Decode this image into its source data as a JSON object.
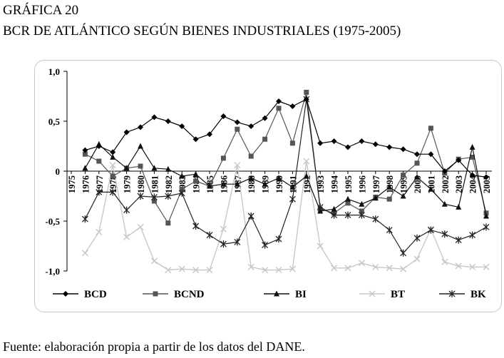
{
  "header": {
    "line1": "GRÁFICA 20",
    "line2": "BCR DE ATLÁNTICO SEGÚN BIENES INDUSTRIALES (1975-2005)"
  },
  "footer": {
    "source": "Fuente: elaboración propia a partir de los datos del DANE."
  },
  "colors": {
    "BCD": "#000000",
    "BCND": "#555555",
    "BI": "#111111",
    "BT": "#c8c8c8",
    "BK": "#222222"
  },
  "chart_data": {
    "type": "line",
    "title": "BCR DE ATLÁNTICO SEGÚN BIENES INDUSTRIALES (1975-2005)",
    "xlabel": "",
    "ylabel": "",
    "ylim": [
      -1.0,
      1.0
    ],
    "yticks": [
      1.0,
      0.5,
      0,
      -0.5,
      -1.0
    ],
    "ytick_labels": [
      "1,0",
      "0,5",
      "0",
      "-0,5",
      "-1,0"
    ],
    "x": [
      "1975",
      "1976",
      "1977",
      "1978",
      "1979",
      "1980",
      "1981",
      "1982",
      "1983",
      "1984",
      "1985",
      "1986",
      "1987",
      "1988",
      "1989",
      "1990",
      "1991",
      "1992",
      "1993",
      "1994",
      "1995",
      "1996",
      "1997",
      "1998",
      "1999",
      "2000",
      "2001",
      "2002",
      "2003",
      "2004",
      "2005"
    ],
    "grid": false,
    "legend_position": "bottom",
    "series": [
      {
        "name": "BCD",
        "marker": "diamond",
        "values": [
          null,
          0.21,
          0.25,
          0.19,
          0.39,
          0.44,
          0.54,
          0.5,
          0.45,
          0.32,
          0.37,
          0.55,
          0.49,
          0.45,
          0.53,
          0.7,
          0.65,
          0.72,
          0.28,
          0.3,
          0.24,
          0.3,
          0.27,
          0.24,
          0.22,
          0.17,
          0.17,
          0.0,
          0.11,
          -0.04,
          -0.06
        ]
      },
      {
        "name": "BCND",
        "marker": "square",
        "values": [
          null,
          0.17,
          0.1,
          -0.05,
          0.03,
          0.05,
          -0.3,
          -0.52,
          -0.18,
          -0.1,
          -0.15,
          0.13,
          0.42,
          0.15,
          0.32,
          0.63,
          0.28,
          0.79,
          -0.38,
          -0.42,
          -0.32,
          -0.4,
          -0.26,
          -0.28,
          -0.04,
          0.08,
          0.43,
          -0.02,
          0.12,
          0.14,
          -0.42
        ]
      },
      {
        "name": "BI",
        "marker": "triangle",
        "values": [
          null,
          0.03,
          0.27,
          0.14,
          0.03,
          0.25,
          0.03,
          0.02,
          -0.05,
          -0.03,
          -0.15,
          -0.13,
          -0.13,
          -0.07,
          -0.13,
          -0.07,
          -0.16,
          -0.05,
          -0.4,
          -0.38,
          -0.28,
          -0.33,
          -0.27,
          -0.16,
          -0.25,
          -0.06,
          -0.18,
          -0.33,
          -0.36,
          0.24,
          -0.45
        ]
      },
      {
        "name": "BT",
        "marker": "x",
        "values": [
          null,
          -0.82,
          -0.61,
          0.06,
          -0.66,
          -0.56,
          -0.9,
          -0.99,
          -0.98,
          -0.99,
          -0.99,
          -0.58,
          0.06,
          -0.96,
          -0.99,
          -0.99,
          -0.98,
          0.1,
          -0.75,
          -0.97,
          -0.97,
          -0.92,
          -0.96,
          -0.97,
          -0.98,
          -0.88,
          -0.58,
          -0.91,
          -0.95,
          -0.96,
          -0.96
        ]
      },
      {
        "name": "BK",
        "marker": "star",
        "values": [
          null,
          -0.48,
          -0.21,
          -0.21,
          -0.39,
          -0.25,
          -0.26,
          -0.25,
          -0.22,
          -0.55,
          -0.64,
          -0.73,
          -0.71,
          -0.45,
          -0.74,
          -0.68,
          -0.28,
          0.72,
          -0.36,
          -0.44,
          -0.44,
          -0.44,
          -0.48,
          -0.59,
          -0.82,
          -0.67,
          -0.59,
          -0.63,
          -0.69,
          -0.64,
          -0.56
        ]
      }
    ]
  }
}
